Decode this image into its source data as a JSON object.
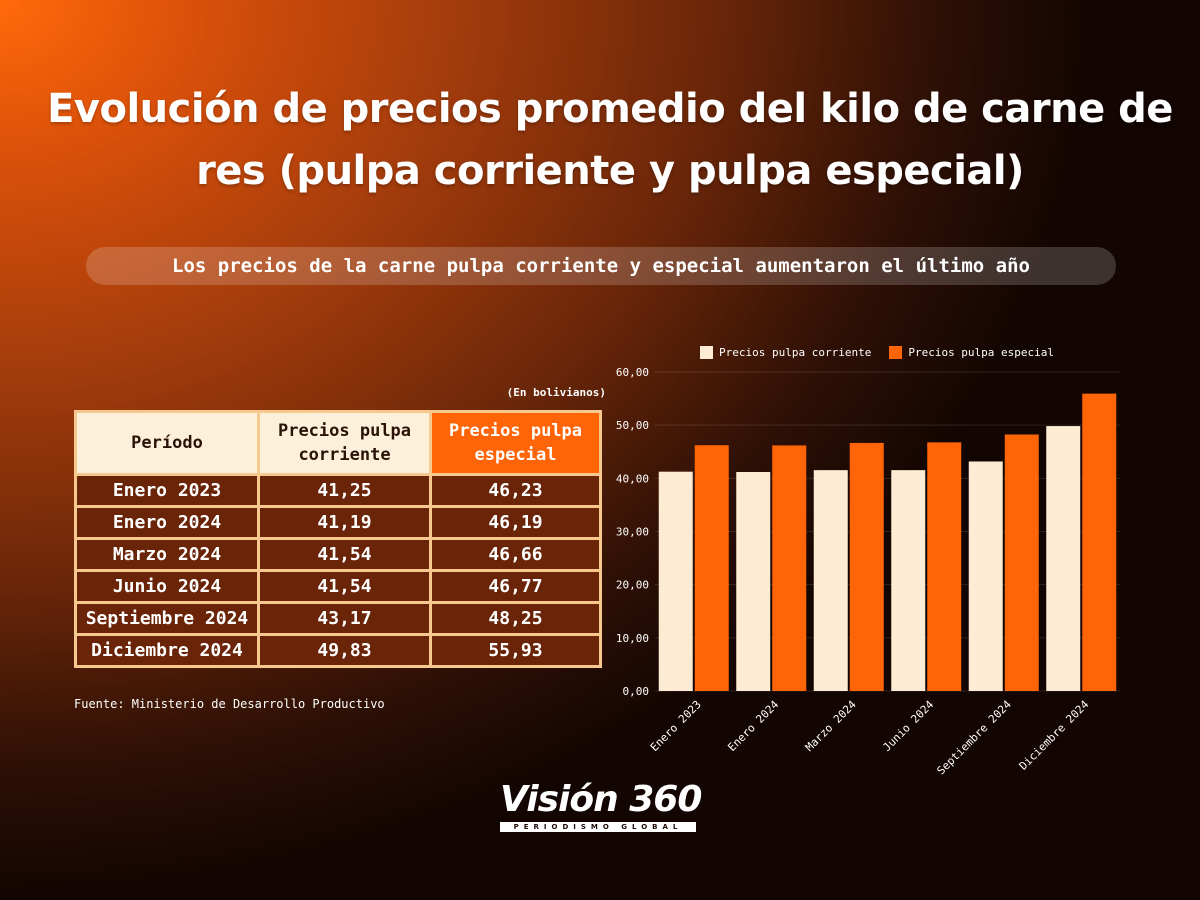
{
  "title": "Evolución de precios promedio del kilo de carne de res (pulpa corriente y pulpa especial)",
  "subtitle": "Los precios de la carne pulpa corriente y especial aumentaron el último año",
  "units_note": "(En bolivianos)",
  "table": {
    "headers": [
      "Período",
      "Precios pulpa corriente",
      "Precios pulpa especial"
    ],
    "rows": [
      [
        "Enero 2023",
        "41,25",
        "46,23"
      ],
      [
        "Enero 2024",
        "41,19",
        "46,19"
      ],
      [
        "Marzo 2024",
        "41,54",
        "46,66"
      ],
      [
        "Junio 2024",
        "41,54",
        "46,77"
      ],
      [
        "Septiembre 2024",
        "43,17",
        "48,25"
      ],
      [
        "Diciembre 2024",
        "49,83",
        "55,93"
      ]
    ]
  },
  "source": "Fuente: Ministerio de Desarrollo Productivo",
  "logo": {
    "word": "Visión 360",
    "tagline": "PERIODISMO GLOBAL"
  },
  "colors": {
    "corriente": "#fdecd3",
    "especial": "#ff6406",
    "accent": "#ff6406"
  },
  "chart_data": {
    "type": "bar",
    "categories": [
      "Enero 2023",
      "Enero 2024",
      "Marzo 2024",
      "Junio 2024",
      "Septiembre 2024",
      "Diciembre 2024"
    ],
    "series": [
      {
        "name": "Precios pulpa corriente",
        "values": [
          41.25,
          41.19,
          41.54,
          41.54,
          43.17,
          49.83
        ]
      },
      {
        "name": "Precios pulpa especial",
        "values": [
          46.23,
          46.19,
          46.66,
          46.77,
          48.25,
          55.93
        ]
      }
    ],
    "ylim": [
      0,
      60
    ],
    "yticks": [
      "0,00",
      "10,00",
      "20,00",
      "30,00",
      "40,00",
      "50,00",
      "60,00"
    ],
    "grid": true,
    "legend": "top"
  }
}
